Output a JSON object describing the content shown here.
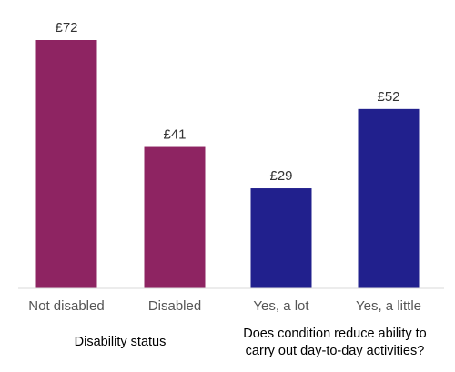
{
  "chart_data": {
    "type": "bar",
    "title": "",
    "xlabel": "",
    "ylabel": "",
    "ylim": [
      0,
      72
    ],
    "grid": false,
    "legend": "none",
    "categories": [
      "Not disabled",
      "Disabled",
      "Yes, a lot",
      "Yes, a little"
    ],
    "values": [
      72,
      41,
      29,
      52
    ],
    "value_labels": [
      "£72",
      "£41",
      "£29",
      "£52"
    ],
    "bar_colors": [
      "#8e2462",
      "#8e2462",
      "#21208d",
      "#21208d"
    ],
    "groups": [
      {
        "label": "Disability status",
        "categories": [
          "Not disabled",
          "Disabled"
        ]
      },
      {
        "label_lines": [
          "Does condition reduce ability to",
          "carry out day-to-day activities?"
        ],
        "categories": [
          "Yes, a lot",
          "Yes, a little"
        ]
      }
    ]
  }
}
